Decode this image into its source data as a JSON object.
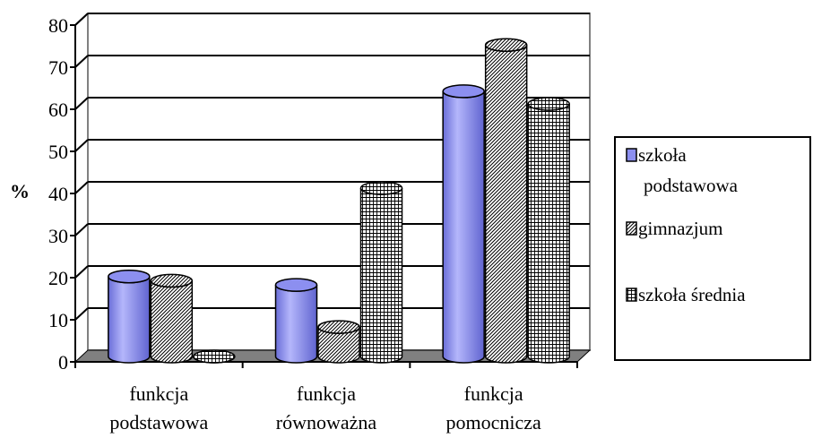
{
  "chart_data": {
    "type": "bar",
    "title": "",
    "ylabel": "%",
    "xlabel": "",
    "ylim": [
      0,
      80
    ],
    "yticks": [
      0,
      10,
      20,
      30,
      40,
      50,
      60,
      70,
      80
    ],
    "grid": true,
    "legend_position": "right",
    "categories": [
      [
        "funkcja",
        "podstawowa"
      ],
      [
        "funkcja",
        "równoważna"
      ],
      [
        "funkcja",
        "pomocnicza"
      ]
    ],
    "series": [
      {
        "name": "szkoła podstawowa",
        "legend_lines": [
          "szkoła",
          "podstawowa"
        ],
        "values": [
          19,
          17,
          63
        ],
        "pattern": "solid",
        "color": "#8c8ff0"
      },
      {
        "name": "gimnazjum",
        "legend_lines": [
          "gimnazjum"
        ],
        "values": [
          18,
          7,
          74
        ],
        "pattern": "diagonal-hatch",
        "color": "#ffffff"
      },
      {
        "name": "szkoła średnia",
        "legend_lines": [
          "szkoła średnia"
        ],
        "values": [
          0,
          40,
          60
        ],
        "pattern": "grid-hatch",
        "color": "#ffffff"
      }
    ]
  }
}
